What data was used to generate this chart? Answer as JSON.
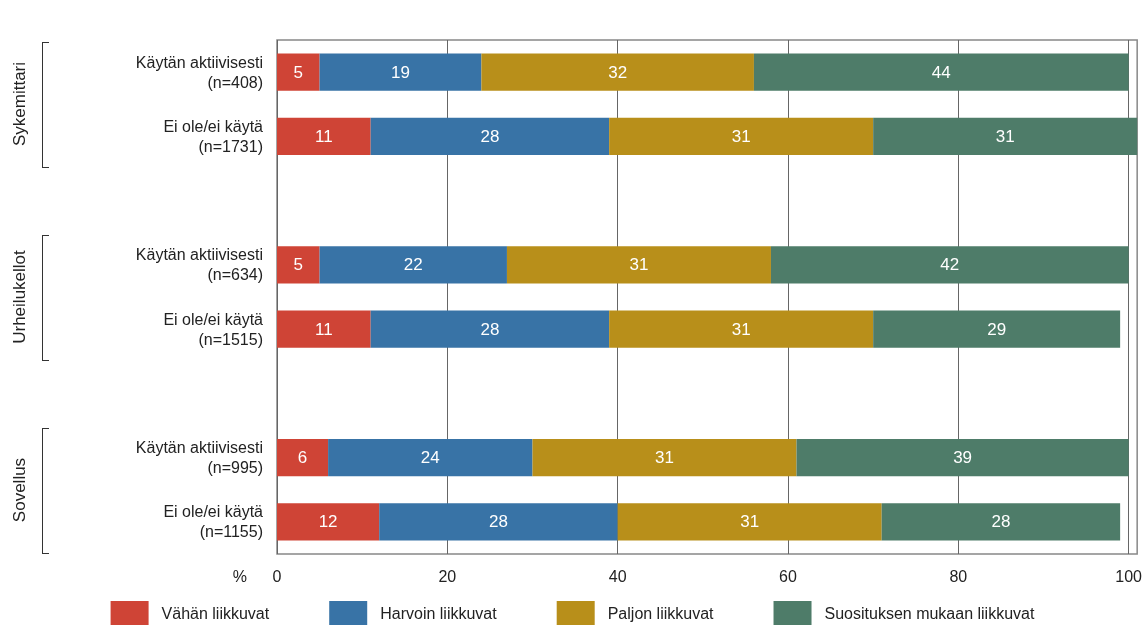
{
  "chart_data": {
    "type": "bar",
    "orientation": "horizontal",
    "stacked": true,
    "data_labels": true,
    "grid": "x",
    "legend": "bottom",
    "xlabel": "%",
    "categories": [
      "Käytän aktiivisesti\n(n=408)",
      "Ei ole/ei käytä\n(n=1731)",
      null,
      "Käytän aktiivisesti\n(n=634)",
      "Ei ole/ei käytä\n(n=1515)",
      null,
      "Käytän aktiivisesti\n(n=995)",
      "Ei ole/ei käytä\n(n=1155)"
    ],
    "xlim": [
      0,
      101
    ],
    "xticks": [
      0,
      20,
      40,
      60,
      80,
      100
    ],
    "annotations": [
      "Sykemittari",
      "Urheilukellot",
      "Sovellus"
    ],
    "series": [
      {
        "name": "Vähän liikkuvat",
        "color": "#cf4436",
        "values": [
          5,
          11,
          null,
          5,
          11,
          null,
          6,
          12
        ]
      },
      {
        "name": "Harvoin liikkuvat",
        "color": "#3873a6",
        "values": [
          19,
          28,
          null,
          22,
          28,
          null,
          24,
          28
        ]
      },
      {
        "name": "Paljon liikkuvat",
        "color": "#b88f1a",
        "values": [
          32,
          31,
          null,
          31,
          31,
          null,
          31,
          31
        ]
      },
      {
        "name": "Suosituksen mukaan liikkuvat",
        "color": "#4e7c69",
        "values": [
          44,
          31,
          null,
          42,
          29,
          null,
          39,
          28
        ]
      }
    ]
  }
}
